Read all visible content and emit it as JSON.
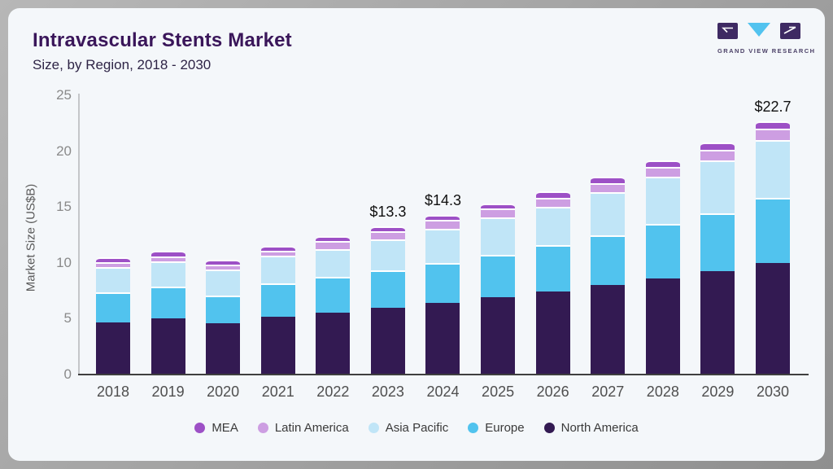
{
  "header": {
    "title": "Intravascular Stents Market",
    "subtitle": "Size, by Region, 2018 - 2030"
  },
  "logo": {
    "text": "GRAND VIEW RESEARCH"
  },
  "chart_data": {
    "type": "bar",
    "stacked": true,
    "title": "Intravascular Stents Market Size, by Region, 2018 - 2030",
    "xlabel": "",
    "ylabel": "Market Size (US$B)",
    "ylim": [
      0,
      25
    ],
    "yticks": [
      0,
      5,
      10,
      15,
      20,
      25
    ],
    "grid": false,
    "legend_position": "bottom",
    "categories": [
      "2018",
      "2019",
      "2020",
      "2021",
      "2022",
      "2023",
      "2024",
      "2025",
      "2026",
      "2027",
      "2028",
      "2029",
      "2030"
    ],
    "series": [
      {
        "name": "North America",
        "color": "#331a52",
        "values": [
          4.7,
          5.05,
          4.6,
          5.2,
          5.55,
          5.95,
          6.4,
          6.9,
          7.45,
          8.0,
          8.6,
          9.25,
          10.0
        ]
      },
      {
        "name": "Europe",
        "color": "#51c3ee",
        "values": [
          2.65,
          2.8,
          2.5,
          2.95,
          3.2,
          3.35,
          3.6,
          3.8,
          4.15,
          4.45,
          4.85,
          5.2,
          5.8
        ]
      },
      {
        "name": "Asia Pacific",
        "color": "#c0e5f7",
        "values": [
          2.25,
          2.3,
          2.3,
          2.5,
          2.5,
          2.8,
          3.05,
          3.35,
          3.45,
          3.85,
          4.25,
          4.7,
          5.2
        ]
      },
      {
        "name": "Latin America",
        "color": "#cd9ee2",
        "values": [
          0.45,
          0.45,
          0.45,
          0.45,
          0.7,
          0.75,
          0.8,
          0.8,
          0.8,
          0.8,
          0.9,
          0.95,
          1.0
        ]
      },
      {
        "name": "MEA",
        "color": "#9d50c6",
        "values": [
          0.45,
          0.45,
          0.45,
          0.45,
          0.45,
          0.45,
          0.45,
          0.45,
          0.55,
          0.6,
          0.6,
          0.65,
          0.7
        ]
      }
    ],
    "totals": [
      10.5,
      11.05,
      10.3,
      11.55,
      12.4,
      13.3,
      14.3,
      15.3,
      16.4,
      17.7,
      19.2,
      20.75,
      22.7
    ],
    "annotations": [
      {
        "category": "2023",
        "text": "$13.3"
      },
      {
        "category": "2024",
        "text": "$14.3"
      },
      {
        "category": "2030",
        "text": "$22.7"
      }
    ],
    "legend_order": [
      "MEA",
      "Latin America",
      "Asia Pacific",
      "Europe",
      "North America"
    ]
  }
}
